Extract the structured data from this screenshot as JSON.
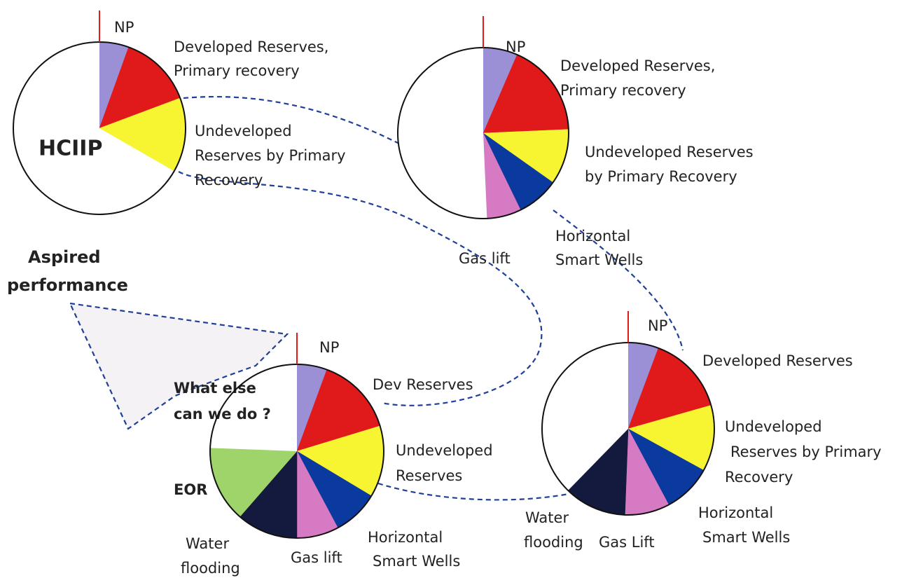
{
  "pies": [
    {
      "slices": [
        {
          "value": 5.5,
          "color": "#9b8fd6",
          "label": [
            "NP"
          ]
        },
        {
          "value": 13.8,
          "color": "#e0191b",
          "label": [
            "Developed Reserves,",
            "Primary recovery"
          ]
        },
        {
          "value": 14,
          "color": "#f7f531",
          "label": [
            "Undeveloped",
            "Reserves by Primary",
            "Recovery"
          ]
        },
        {
          "value": 66.7,
          "color": "#ffffff",
          "label": [
            "HCIIP"
          ]
        }
      ]
    },
    {
      "slices": [
        {
          "value": 6.5,
          "color": "#9b8fd6",
          "label": [
            "NP"
          ]
        },
        {
          "value": 17.8,
          "color": "#e0191b",
          "label": [
            "Developed  Reserves,",
            "Primary recovery"
          ]
        },
        {
          "value": 10.5,
          "color": "#f7f531",
          "label": [
            "Undeveloped Reserves",
            "by Primary Recovery"
          ]
        },
        {
          "value": 8,
          "color": "#0b3a9e",
          "label": [
            "Horizontal",
            "Smart Wells"
          ]
        },
        {
          "value": 6.5,
          "color": "#d77ac4",
          "label": [
            "Gas lift"
          ]
        },
        {
          "value": 50.7,
          "color": "#ffffff"
        }
      ]
    },
    {
      "slices": [
        {
          "value": 5.7,
          "color": "#9b8fd6",
          "label": [
            "NP"
          ]
        },
        {
          "value": 14.9,
          "color": "#e0191b",
          "label": [
            "Developed Reserves"
          ]
        },
        {
          "value": 12.4,
          "color": "#f7f531",
          "label": [
            "Undeveloped",
            "Reserves by Primary",
            "Recovery"
          ]
        },
        {
          "value": 9.2,
          "color": "#0b3a9e",
          "label": [
            "Horizontal",
            "Smart Wells"
          ]
        },
        {
          "value": 8.4,
          "color": "#d77ac4",
          "label": [
            "Gas Lift"
          ]
        },
        {
          "value": 11.7,
          "color": "#141a3d",
          "label": [
            "Water",
            "flooding"
          ]
        },
        {
          "value": 37.7,
          "color": "#ffffff"
        }
      ]
    },
    {
      "slices": [
        {
          "value": 5.6,
          "color": "#9b8fd6",
          "label": [
            "NP"
          ]
        },
        {
          "value": 14.7,
          "color": "#e0191b",
          "label": [
            "Dev Reserves"
          ]
        },
        {
          "value": 13.3,
          "color": "#f7f531",
          "label": [
            "Undeveloped",
            "Reserves"
          ]
        },
        {
          "value": 8.6,
          "color": "#0b3a9e",
          "label": [
            "Horizontal",
            "Smart Wells"
          ]
        },
        {
          "value": 7.8,
          "color": "#d77ac4",
          "label": [
            "Gas lift"
          ]
        },
        {
          "value": 11.4,
          "color": "#141a3d",
          "label": [
            "Water",
            "flooding"
          ]
        },
        {
          "value": 14.2,
          "color": "#9fd46a",
          "label": [
            "EOR"
          ]
        },
        {
          "value": 24.4,
          "color": "#ffffff",
          "label": [
            "What else",
            "can we do ?"
          ]
        }
      ]
    }
  ],
  "annotation": [
    "Aspired",
    "performance"
  ]
}
